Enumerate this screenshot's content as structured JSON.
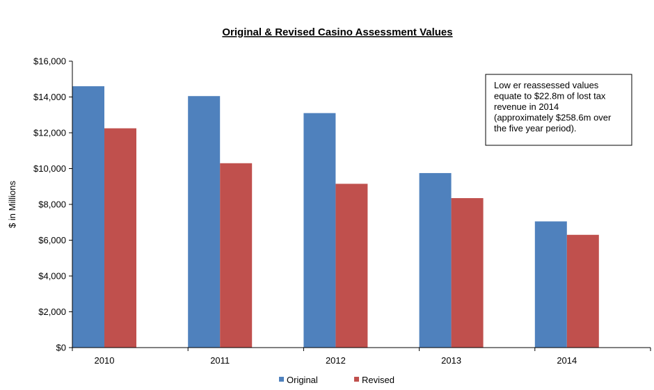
{
  "chart_data": {
    "type": "bar",
    "title": "Original & Revised Casino Assessment Values",
    "ylabel": "$ in Millions",
    "xlabel": "",
    "categories": [
      "2010",
      "2011",
      "2012",
      "2013",
      "2014"
    ],
    "series": [
      {
        "name": "Original",
        "color": "#4f81bd",
        "values": [
          14600,
          14050,
          13100,
          9750,
          7050
        ]
      },
      {
        "name": "Revised",
        "color": "#c0504d",
        "values": [
          12250,
          10300,
          9150,
          8350,
          6300
        ]
      }
    ],
    "ylim": [
      0,
      16000
    ],
    "ytick_values": [
      0,
      2000,
      4000,
      6000,
      8000,
      10000,
      12000,
      14000,
      16000
    ],
    "ytick_labels": [
      "$0",
      "$2,000",
      "$4,000",
      "$6,000",
      "$8,000",
      "$10,000",
      "$12,000",
      "$14,000",
      "$16,000"
    ],
    "grid": false,
    "legend_position": "bottom",
    "annotation": {
      "lines": [
        "Low er reassessed values",
        "equate to $22.8m of lost tax",
        "revenue  in 2014",
        "(approximately $258.6m over",
        "the five year period)."
      ]
    }
  }
}
